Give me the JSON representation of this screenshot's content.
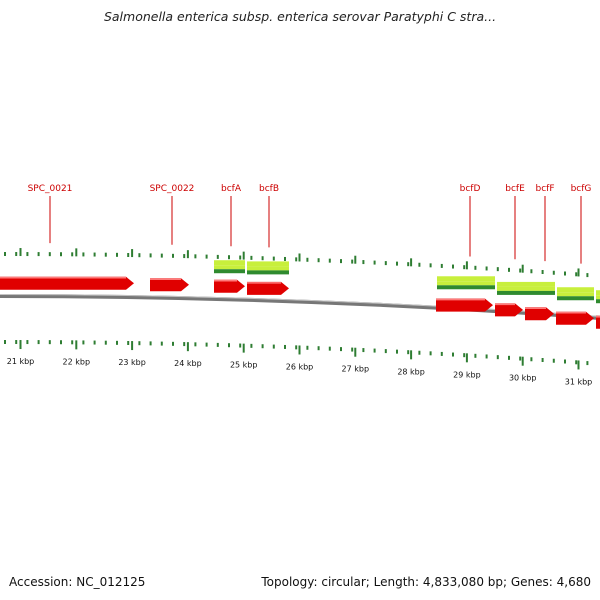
{
  "title": "Salmonella enterica subsp. enterica serovar Paratyphi C stra...",
  "footer": {
    "accession": "Accession: NC_012125",
    "stats": "Topology: circular; Length: 4,833,080 bp; Genes: 4,680"
  },
  "colors": {
    "gene_red": "#e00000",
    "gene_green_light": "#c8ef3c",
    "gene_green_dark": "#2f8a2f",
    "tick_green": "#2e7d32",
    "label_red": "#cc0000",
    "backbone_gray": "#777777"
  },
  "ticks": [
    {
      "label": "21 kbp"
    },
    {
      "label": "22 kbp"
    },
    {
      "label": "23 kbp"
    },
    {
      "label": "24 kbp"
    },
    {
      "label": "25 kbp"
    },
    {
      "label": "26 kbp"
    },
    {
      "label": "27 kbp"
    },
    {
      "label": "28 kbp"
    },
    {
      "label": "29 kbp"
    },
    {
      "label": "30 kbp"
    },
    {
      "label": "31 kbp"
    }
  ],
  "gene_labels": [
    "SPC_0021",
    "SPC_0022",
    "bcfA",
    "bcfB",
    "bcfD",
    "bcfE",
    "bcfF",
    "bcfG"
  ]
}
